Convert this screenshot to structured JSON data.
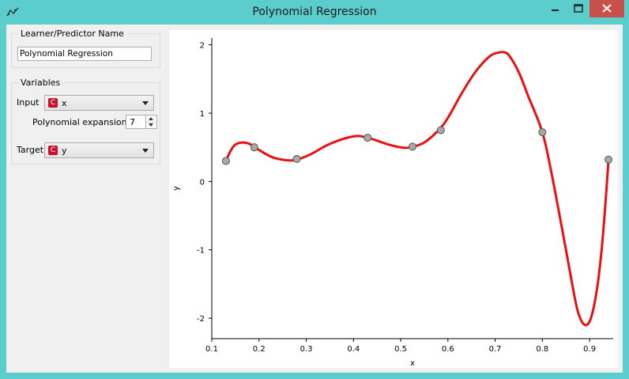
{
  "window": {
    "title": "Polynomial Regression",
    "icon": "regression-icon"
  },
  "sidebar": {
    "name_group": {
      "title": "Learner/Predictor Name",
      "value": "Polynomial Regression"
    },
    "variables_group": {
      "title": "Variables",
      "input_label": "Input",
      "input_value": "x",
      "input_badge": "C",
      "expansion_label": "Polynomial expansion:",
      "expansion_value": "7",
      "target_label": "Target",
      "target_value": "y",
      "target_badge": "C"
    }
  },
  "colors": {
    "curve": "#e81010",
    "points_fill": "#a8a8a8",
    "titlebar": "#5bcdcd",
    "close": "#c7504b"
  },
  "chart_data": {
    "type": "scatter",
    "xlabel": "x",
    "ylabel": "y",
    "xlim": [
      0.1,
      0.95
    ],
    "ylim": [
      -2.3,
      2.1
    ],
    "xticks": [
      "0.1",
      "0.2",
      "0.3",
      "0.4",
      "0.5",
      "0.6",
      "0.7",
      "0.8",
      "0.9"
    ],
    "yticks": [
      "-2",
      "-1",
      "0",
      "1",
      "2"
    ],
    "grid": false,
    "points": {
      "x": [
        0.13,
        0.19,
        0.28,
        0.43,
        0.525,
        0.585,
        0.8,
        0.94
      ],
      "y": [
        0.3,
        0.5,
        0.33,
        0.64,
        0.51,
        0.75,
        0.72,
        0.32
      ]
    },
    "fit_curve": {
      "x": [
        0.13,
        0.14,
        0.15,
        0.165,
        0.18,
        0.2,
        0.23,
        0.26,
        0.28,
        0.31,
        0.35,
        0.4,
        0.43,
        0.47,
        0.5,
        0.52,
        0.55,
        0.58,
        0.6,
        0.63,
        0.66,
        0.69,
        0.71,
        0.72,
        0.73,
        0.75,
        0.77,
        0.8,
        0.82,
        0.85,
        0.87,
        0.88,
        0.89,
        0.9,
        0.91,
        0.92,
        0.93,
        0.94
      ],
      "y": [
        0.3,
        0.45,
        0.54,
        0.57,
        0.55,
        0.46,
        0.35,
        0.31,
        0.32,
        0.4,
        0.55,
        0.66,
        0.64,
        0.55,
        0.5,
        0.5,
        0.57,
        0.75,
        0.93,
        1.3,
        1.62,
        1.84,
        1.89,
        1.89,
        1.84,
        1.6,
        1.25,
        0.72,
        0.1,
        -1.0,
        -1.75,
        -2.0,
        -2.1,
        -2.05,
        -1.8,
        -1.35,
        -0.65,
        0.3
      ]
    }
  }
}
